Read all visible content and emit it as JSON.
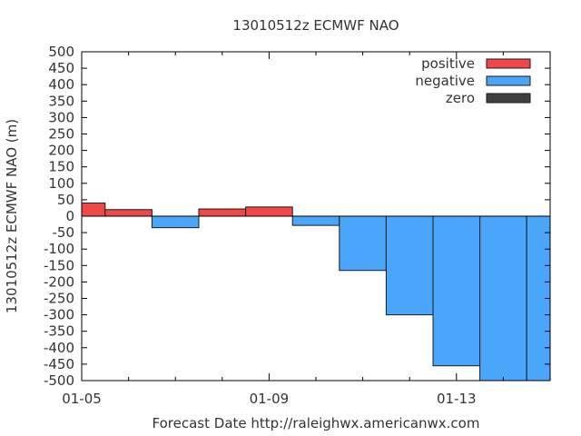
{
  "chart_data": {
    "type": "bar",
    "title": "13010512z ECMWF NAO",
    "xlabel": "Forecast Date http://raleighwx.americanwx.com",
    "ylabel": "13010512z ECMWF NAO (m)",
    "ylim": [
      -500,
      500
    ],
    "yticks": [
      500,
      450,
      400,
      350,
      300,
      250,
      200,
      150,
      100,
      50,
      0,
      -50,
      -100,
      -150,
      -200,
      -250,
      -300,
      -350,
      -400,
      -450,
      -500
    ],
    "xlim": [
      "2013-01-05",
      "2013-01-15"
    ],
    "xticks": [
      {
        "date": "2013-01-05",
        "label": "01-05"
      },
      {
        "date": "2013-01-09",
        "label": "01-09"
      },
      {
        "date": "2013-01-13",
        "label": "01-13"
      }
    ],
    "minor_xticks": [
      "2013-01-06",
      "2013-01-07",
      "2013-01-08",
      "2013-01-10",
      "2013-01-11",
      "2013-01-12",
      "2013-01-14"
    ],
    "bars": [
      {
        "start": "2013-01-05",
        "end": "2013-01-05T12:00",
        "value": 40
      },
      {
        "start": "2013-01-05T12:00",
        "end": "2013-01-06T12:00",
        "value": 20
      },
      {
        "start": "2013-01-06T12:00",
        "end": "2013-01-07T12:00",
        "value": -35
      },
      {
        "start": "2013-01-07T12:00",
        "end": "2013-01-08T12:00",
        "value": 22
      },
      {
        "start": "2013-01-08T12:00",
        "end": "2013-01-09T12:00",
        "value": 28
      },
      {
        "start": "2013-01-09T12:00",
        "end": "2013-01-10T12:00",
        "value": -28
      },
      {
        "start": "2013-01-10T12:00",
        "end": "2013-01-11T12:00",
        "value": -165
      },
      {
        "start": "2013-01-11T12:00",
        "end": "2013-01-12T12:00",
        "value": -300
      },
      {
        "start": "2013-01-12T12:00",
        "end": "2013-01-13T12:00",
        "value": -455
      },
      {
        "start": "2013-01-13T12:00",
        "end": "2013-01-14T12:00",
        "value": -500
      },
      {
        "start": "2013-01-14T12:00",
        "end": "2013-01-15",
        "value": -500
      }
    ],
    "legend": {
      "position": "top-right",
      "entries": [
        {
          "label": "positive",
          "color": "#f04848"
        },
        {
          "label": "negative",
          "color": "#4aa6fa"
        },
        {
          "label": "zero",
          "color": "#404040"
        }
      ]
    },
    "colors": {
      "positive": "#f04848",
      "negative": "#4aa6fa",
      "zero": "#404040",
      "edge": "#1a1a1a"
    },
    "grid": false
  }
}
